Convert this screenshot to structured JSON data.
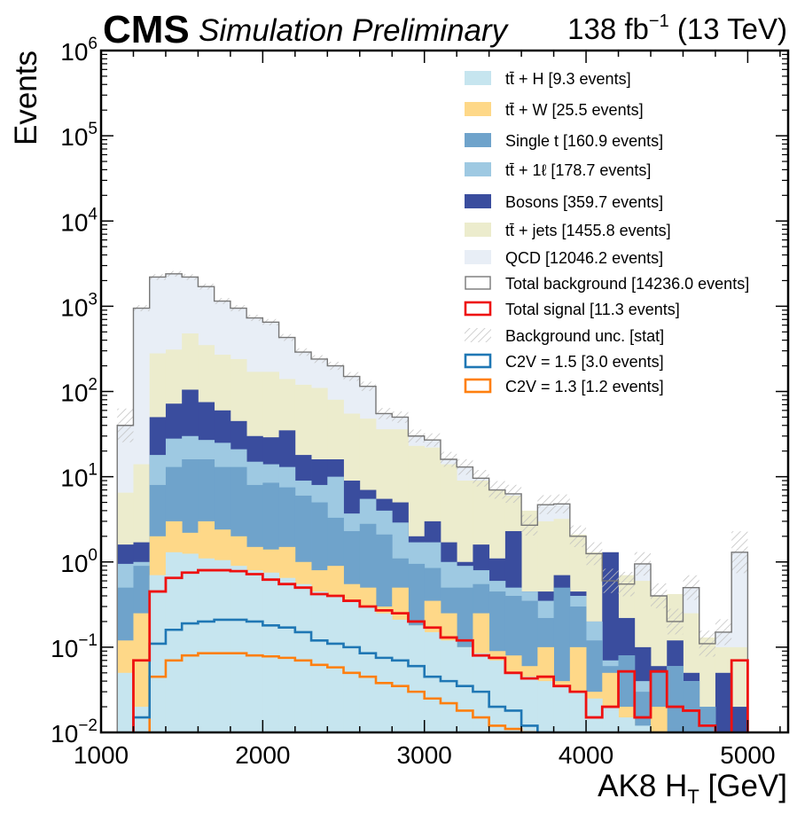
{
  "header": {
    "brand": "CMS",
    "status": "Simulation Preliminary",
    "lumi_value": "138 fb",
    "lumi_exp": "−1",
    "energy": " (13 TeV)"
  },
  "axes": {
    "xlabel_main": "AK8 H",
    "xlabel_sub": "T",
    "xlabel_unit": " [GeV]",
    "ylabel": "Events"
  },
  "chart_data": {
    "type": "histogram-stacked",
    "xlim": [
      1000,
      5250
    ],
    "ylim": [
      0.01,
      1000000
    ],
    "yscale": "log",
    "x_ticks": [
      1000,
      2000,
      3000,
      4000,
      5000
    ],
    "y_ticks": [
      {
        "base": "10",
        "exp": "−2"
      },
      {
        "base": "10",
        "exp": "−1"
      },
      {
        "base": "10",
        "exp": "0"
      },
      {
        "base": "10",
        "exp": "1"
      },
      {
        "base": "10",
        "exp": "2"
      },
      {
        "base": "10",
        "exp": "3"
      },
      {
        "base": "10",
        "exp": "4"
      },
      {
        "base": "10",
        "exp": "5"
      },
      {
        "base": "10",
        "exp": "6"
      }
    ],
    "bin_edges": [
      1100,
      1200,
      1300,
      1400,
      1500,
      1600,
      1700,
      1800,
      1900,
      2000,
      2100,
      2200,
      2300,
      2400,
      2500,
      2600,
      2700,
      2800,
      2900,
      3000,
      3100,
      3200,
      3300,
      3400,
      3500,
      3600,
      3700,
      3800,
      3900,
      4000,
      4100,
      4200,
      4300,
      4400,
      4500,
      4600,
      4700,
      4800,
      4900,
      5000
    ],
    "stack_order": [
      "ttH",
      "ttW",
      "single_t",
      "tt1l",
      "bosons",
      "ttjets",
      "qcd"
    ],
    "stack_cumulative": {
      "ttH": [
        0.05,
        0.02,
        0.7,
        1.3,
        1.25,
        1.1,
        1.05,
        0.9,
        0.8,
        0.75,
        0.65,
        0.55,
        0.45,
        0.4,
        0.35,
        0.3,
        0.25,
        0.21,
        0.18,
        0.15,
        0.12,
        0.1,
        0.085,
        0.07,
        0.05,
        0.045,
        0.04,
        0.035,
        0.03,
        0.025,
        0.02,
        0.015,
        0.012,
        0.01,
        0.01,
        0.008,
        0.006,
        0.005,
        0.004
      ],
      "ttW": [
        0.12,
        0.25,
        2.0,
        3.0,
        2.2,
        3.0,
        2.4,
        2.0,
        1.5,
        1.4,
        1.5,
        1.0,
        0.8,
        0.9,
        0.55,
        0.5,
        0.3,
        0.5,
        0.18,
        0.35,
        0.25,
        0.1,
        0.25,
        0.09,
        0.08,
        0.06,
        0.1,
        0.04,
        0.1,
        0.03,
        0.05,
        0.02,
        0.01,
        0.02,
        0.01,
        0.008,
        0.006,
        0.005,
        0.004
      ],
      "single_t": [
        0.5,
        0.9,
        8,
        13,
        16,
        16,
        13,
        13,
        8,
        8.5,
        7.5,
        6,
        5,
        3.3,
        2.3,
        2.8,
        2.1,
        1.1,
        0.95,
        0.85,
        0.5,
        0.5,
        0.55,
        0.45,
        0.4,
        0.35,
        0.22,
        0.5,
        0.3,
        0.12,
        0.06,
        0.08,
        0.03,
        0.05,
        0.06,
        0.04,
        0.02,
        0.01,
        0.01
      ],
      "tt1l": [
        0.95,
        1.0,
        18,
        28,
        30,
        27,
        25,
        21,
        15,
        14,
        13,
        9,
        8,
        10,
        3.7,
        5.5,
        4.0,
        2.9,
        1.7,
        1.7,
        1.0,
        0.9,
        0.8,
        0.6,
        0.5,
        0.45,
        0.35,
        0.38,
        0.4,
        0.2,
        0.07,
        0.08,
        0.04,
        0.05,
        0.06,
        0.04,
        0.02,
        0.01,
        0.01
      ],
      "bosons": [
        1.6,
        1.7,
        50,
        72,
        105,
        75,
        60,
        45,
        30,
        29,
        35,
        18,
        16,
        16,
        9,
        7,
        5.5,
        5,
        2,
        3,
        1.7,
        1.0,
        1.6,
        1.1,
        2.3,
        0.45,
        0.45,
        0.7,
        0.45,
        0.2,
        1.3,
        0.22,
        0.1,
        0.06,
        0.12,
        0.05,
        0.02,
        0.05,
        0.02
      ],
      "ttjets": [
        6.5,
        14,
        280,
        310,
        480,
        350,
        270,
        240,
        170,
        170,
        140,
        120,
        110,
        80,
        55,
        48,
        36,
        36,
        23,
        22,
        14,
        9,
        9,
        7,
        6,
        4,
        3,
        3.2,
        2.1,
        1.3,
        1.3,
        0.7,
        0.6,
        0.4,
        0.42,
        0.25,
        0.13,
        0.1,
        0.1
      ],
      "qcd": [
        40,
        950,
        2200,
        2400,
        2200,
        1700,
        1150,
        950,
        730,
        650,
        430,
        290,
        240,
        200,
        150,
        115,
        55,
        50,
        30,
        27,
        16,
        13,
        9.6,
        7.0,
        6.3,
        2.7,
        4.7,
        4.8,
        2.0,
        1.25,
        0.6,
        0.55,
        0.95,
        0.4,
        0.2,
        0.5,
        0.11,
        0.15,
        1.3
      ]
    },
    "total_background": [
      40,
      950,
      2200,
      2400,
      2200,
      1700,
      1150,
      950,
      730,
      650,
      430,
      290,
      240,
      200,
      150,
      115,
      55,
      50,
      30,
      27,
      16,
      13,
      9.6,
      7.0,
      6.3,
      2.7,
      4.7,
      4.8,
      2.0,
      1.25,
      0.6,
      0.55,
      0.95,
      0.4,
      0.2,
      0.5,
      0.11,
      0.15,
      1.3
    ],
    "total_signal": [
      0.001,
      0.07,
      0.45,
      0.65,
      0.75,
      0.8,
      0.8,
      0.78,
      0.72,
      0.62,
      0.55,
      0.5,
      0.42,
      0.4,
      0.35,
      0.3,
      0.27,
      0.25,
      0.2,
      0.17,
      0.13,
      0.12,
      0.08,
      0.075,
      0.05,
      0.043,
      0.045,
      0.035,
      0.03,
      0.015,
      0.02,
      0.052,
      0.015,
      0.052,
      0.02,
      0.018,
      0.012,
      0.0005,
      0.07
    ],
    "signal_c2v_1p5": [
      0.0001,
      0.015,
      0.11,
      0.16,
      0.19,
      0.2,
      0.21,
      0.21,
      0.2,
      0.18,
      0.17,
      0.15,
      0.12,
      0.11,
      0.1,
      0.085,
      0.075,
      0.07,
      0.06,
      0.045,
      0.04,
      0.035,
      0.03,
      0.02,
      0.018,
      0.012,
      0.01,
      0.007,
      0.0001,
      0.0001,
      0.0001,
      0.0001,
      0.0001,
      0.0001,
      0.0001,
      0.0001,
      0.0001,
      0.0001,
      0.0001
    ],
    "signal_c2v_1p3": [
      0.0001,
      0.0001,
      0.045,
      0.07,
      0.08,
      0.085,
      0.085,
      0.085,
      0.08,
      0.078,
      0.075,
      0.07,
      0.062,
      0.058,
      0.05,
      0.045,
      0.038,
      0.035,
      0.03,
      0.025,
      0.022,
      0.018,
      0.015,
      0.012,
      0.011,
      0.01,
      0.0001,
      0.0001,
      0.0001,
      0.0001,
      0.0001,
      0.0001,
      0.0001,
      0.0001,
      0.0001,
      0.0001,
      0.0001,
      0.0001,
      0.0001
    ],
    "hatch_bins": [
      0,
      38
    ],
    "colors": {
      "ttH": "#c6e5ef",
      "ttW": "#fed888",
      "single_t": "#6fa3cb",
      "tt1l": "#9ec9e2",
      "bosons": "#3a4d9e",
      "ttjets": "#ececcd",
      "qcd": "#e8eef6",
      "total_background": "#777777",
      "total_signal": "#ee1111",
      "c2v_1p5": "#1f77b4",
      "c2v_1p3": "#ff7f0e",
      "hatch": "#c8c8c8"
    },
    "legend": [
      {
        "key": "ttH",
        "label": "tt̄ + H [9.3 events]",
        "style": "fill"
      },
      {
        "key": "ttW",
        "label": "tt̄ + W [25.5 events]",
        "style": "fill"
      },
      {
        "key": "single_t",
        "label": "Single t [160.9 events]",
        "style": "fill"
      },
      {
        "key": "tt1l",
        "label": "tt̄ + 1ℓ [178.7 events]",
        "style": "fill"
      },
      {
        "key": "bosons",
        "label": "Bosons [359.7 events]",
        "style": "fill"
      },
      {
        "key": "ttjets",
        "label": "tt̄ + jets [1455.8 events]",
        "style": "fill"
      },
      {
        "key": "qcd",
        "label": "QCD [12046.2 events]",
        "style": "fill"
      },
      {
        "key": "total_background",
        "label": "Total background [14236.0 events]",
        "style": "outline"
      },
      {
        "key": "total_signal",
        "label": "Total signal [11.3 events]",
        "style": "outline-thick"
      },
      {
        "key": "hatch",
        "label": "Background unc. [stat]",
        "style": "hatch"
      },
      {
        "key": "c2v_1p5",
        "label": "C2V = 1.5 [3.0 events]",
        "style": "outline-thick"
      },
      {
        "key": "c2v_1p3",
        "label": "C2V = 1.3 [1.2 events]",
        "style": "outline-thick"
      }
    ],
    "legend_position": "top-right"
  }
}
